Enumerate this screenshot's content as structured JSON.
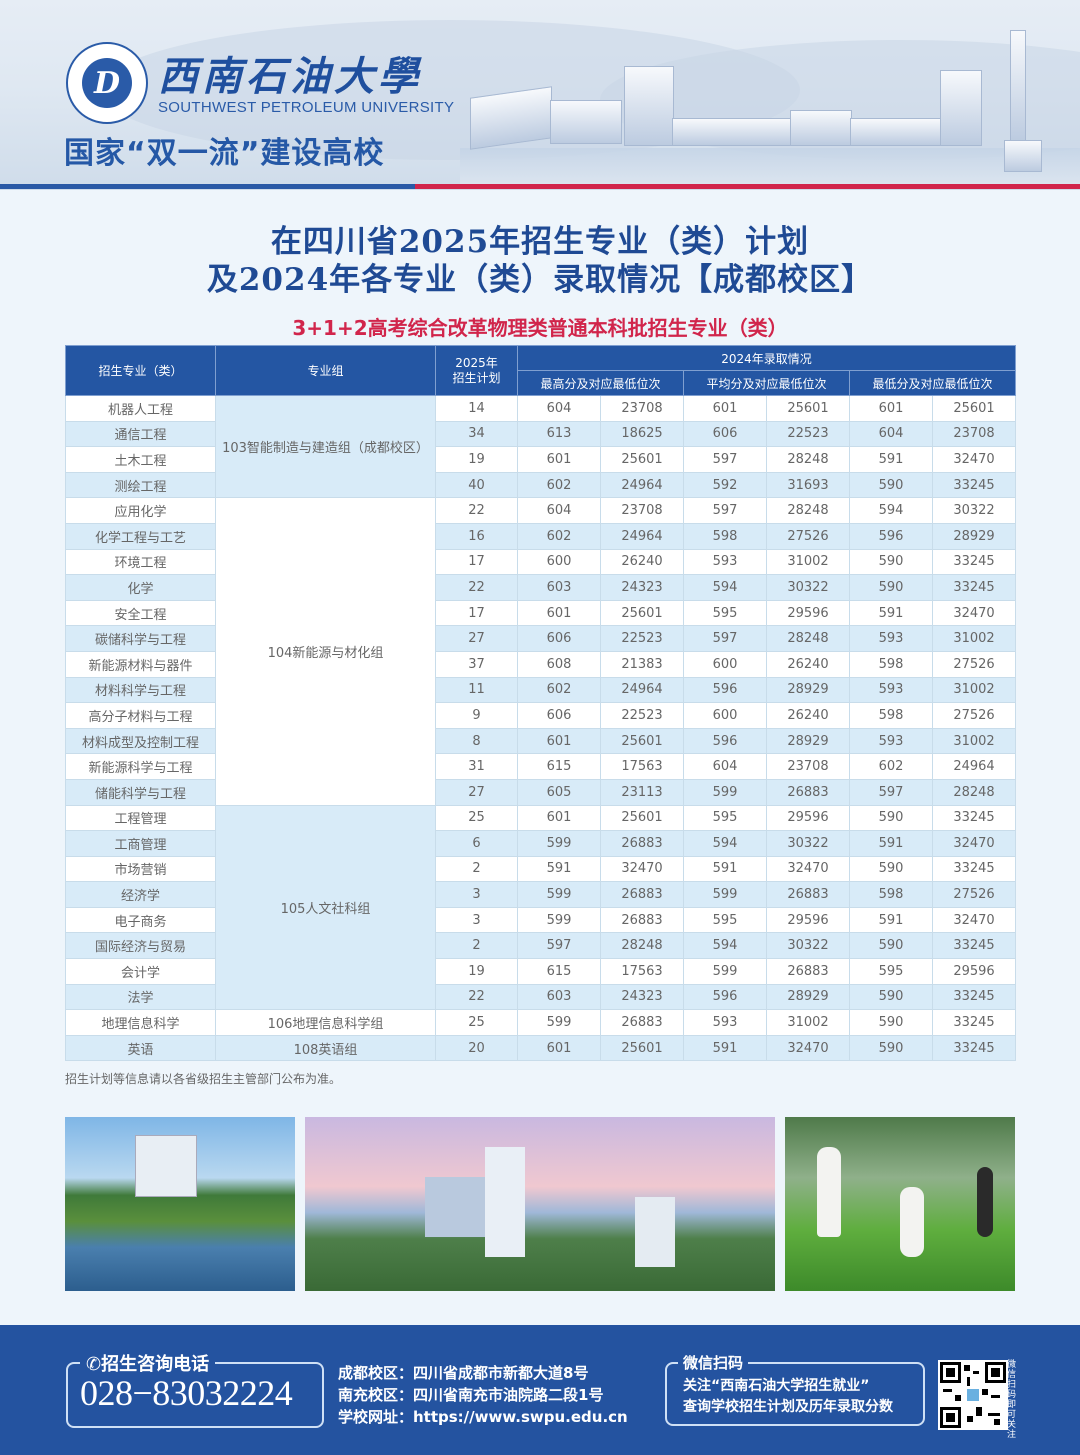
{
  "header": {
    "logo_text": "D",
    "university_cn": "西南石油大學",
    "university_en": "SOUTHWEST PETROLEUM UNIVERSITY",
    "slogan": "国家“双一流”建设高校"
  },
  "title": {
    "line1": "在四川省2025年招生专业（类）计划",
    "line2": "及2024年各专业（类）录取情况【成都校区】",
    "subtitle": "3+1+2高考综合改革物理类普通本科批招生专业（类）"
  },
  "table": {
    "headers": {
      "major": "招生专业（类）",
      "group": "专业组",
      "plan_2025": "2025年招生计划",
      "admission_2024": "2024年录取情况",
      "max": "最高分及对应最低位次",
      "avg": "平均分及对应最低位次",
      "min": "最低分及对应最低位次"
    },
    "groups": [
      {
        "name": "103智能制造与建造组（成都校区）",
        "rows": 4
      },
      {
        "name": "104新能源与材化组",
        "rows": 12
      },
      {
        "name": "105人文社科组",
        "rows": 8
      },
      {
        "name": "106地理信息科学组",
        "rows": 1
      },
      {
        "name": "108英语组",
        "rows": 1
      }
    ],
    "rows": [
      [
        "机器人工程",
        "14",
        "604",
        "23708",
        "601",
        "25601",
        "601",
        "25601"
      ],
      [
        "通信工程",
        "34",
        "613",
        "18625",
        "606",
        "22523",
        "604",
        "23708"
      ],
      [
        "土木工程",
        "19",
        "601",
        "25601",
        "597",
        "28248",
        "591",
        "32470"
      ],
      [
        "测绘工程",
        "40",
        "602",
        "24964",
        "592",
        "31693",
        "590",
        "33245"
      ],
      [
        "应用化学",
        "22",
        "604",
        "23708",
        "597",
        "28248",
        "594",
        "30322"
      ],
      [
        "化学工程与工艺",
        "16",
        "602",
        "24964",
        "598",
        "27526",
        "596",
        "28929"
      ],
      [
        "环境工程",
        "17",
        "600",
        "26240",
        "593",
        "31002",
        "590",
        "33245"
      ],
      [
        "化学",
        "22",
        "603",
        "24323",
        "594",
        "30322",
        "590",
        "33245"
      ],
      [
        "安全工程",
        "17",
        "601",
        "25601",
        "595",
        "29596",
        "591",
        "32470"
      ],
      [
        "碳储科学与工程",
        "27",
        "606",
        "22523",
        "597",
        "28248",
        "593",
        "31002"
      ],
      [
        "新能源材料与器件",
        "37",
        "608",
        "21383",
        "600",
        "26240",
        "598",
        "27526"
      ],
      [
        "材料科学与工程",
        "11",
        "602",
        "24964",
        "596",
        "28929",
        "593",
        "31002"
      ],
      [
        "高分子材料与工程",
        "9",
        "606",
        "22523",
        "600",
        "26240",
        "598",
        "27526"
      ],
      [
        "材料成型及控制工程",
        "8",
        "601",
        "25601",
        "596",
        "28929",
        "593",
        "31002"
      ],
      [
        "新能源科学与工程",
        "31",
        "615",
        "17563",
        "604",
        "23708",
        "602",
        "24964"
      ],
      [
        "储能科学与工程",
        "27",
        "605",
        "23113",
        "599",
        "26883",
        "597",
        "28248"
      ],
      [
        "工程管理",
        "25",
        "601",
        "25601",
        "595",
        "29596",
        "590",
        "33245"
      ],
      [
        "工商管理",
        "6",
        "599",
        "26883",
        "594",
        "30322",
        "591",
        "32470"
      ],
      [
        "市场营销",
        "2",
        "591",
        "32470",
        "591",
        "32470",
        "590",
        "33245"
      ],
      [
        "经济学",
        "3",
        "599",
        "26883",
        "599",
        "26883",
        "598",
        "27526"
      ],
      [
        "电子商务",
        "3",
        "599",
        "26883",
        "595",
        "29596",
        "591",
        "32470"
      ],
      [
        "国际经济与贸易",
        "2",
        "597",
        "28248",
        "594",
        "30322",
        "590",
        "33245"
      ],
      [
        "会计学",
        "19",
        "615",
        "17563",
        "599",
        "26883",
        "595",
        "29596"
      ],
      [
        "法学",
        "22",
        "603",
        "24323",
        "596",
        "28929",
        "590",
        "33245"
      ],
      [
        "地理信息科学",
        "25",
        "599",
        "26883",
        "593",
        "31002",
        "590",
        "33245"
      ],
      [
        "英语",
        "20",
        "601",
        "25601",
        "591",
        "32470",
        "590",
        "33245"
      ]
    ],
    "note": "招生计划等信息请以各省级招生主管部门公布为准。"
  },
  "photos": [
    {
      "name": "campus-lake-photo"
    },
    {
      "name": "campus-skyline-photo"
    },
    {
      "name": "students-music-photo"
    }
  ],
  "footer": {
    "phone_label": "招生咨询电话",
    "phone": "028−83032224",
    "chengdu": "成都校区：四川省成都市新都大道8号",
    "nanchong": "南充校区：四川省南充市油院路二段1号",
    "website": "学校网址：https://www.swpu.edu.cn",
    "wechat_label": "微信扫码",
    "wechat_line1": "关注“西南石油大学招生就业”",
    "wechat_line2": "查询学校招生计划及历年录取分数",
    "qr_side": "微信扫码即可关注"
  },
  "colors": {
    "brand_blue": "#2456a3",
    "accent_red": "#d1254b",
    "row_blue": "#d8ebf8"
  }
}
